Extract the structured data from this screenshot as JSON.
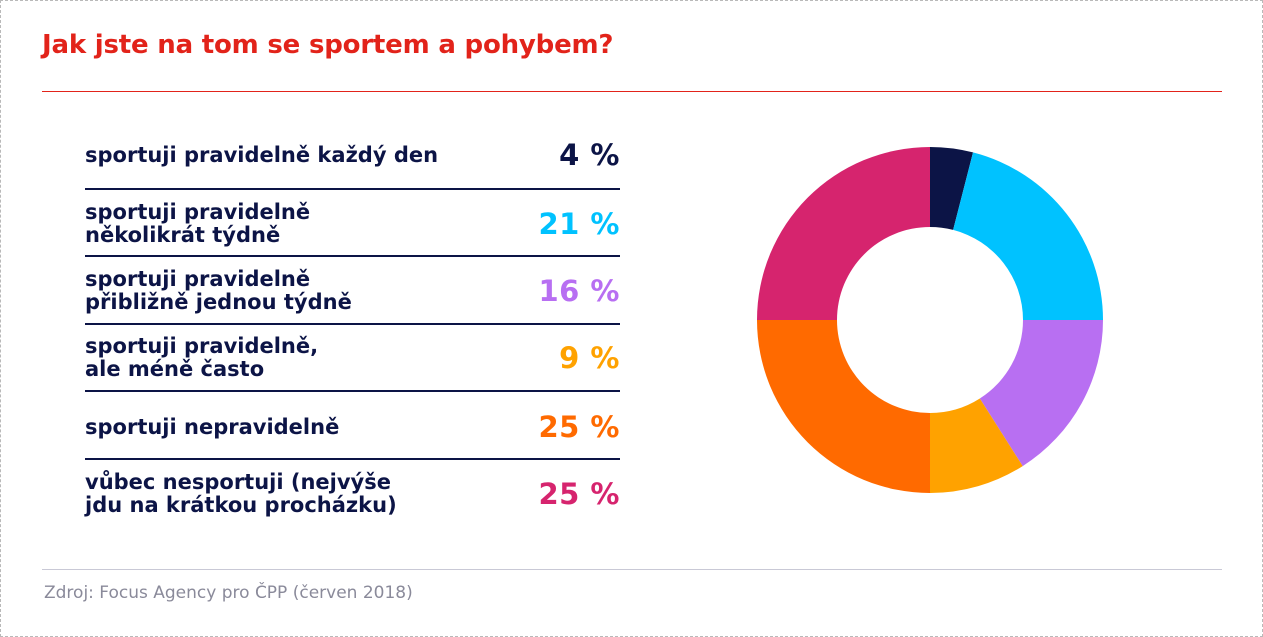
{
  "title": "Jak jste na tom se sportem a pohybem?",
  "source": "Zdroj: Focus Agency pro ČPP (červen 2018)",
  "chart_data": {
    "type": "pie",
    "title": "Jak jste na tom se sportem a pohybem?",
    "donut": true,
    "unit": "%",
    "slices": [
      {
        "label": "sportuji pravidelně každý den",
        "value": 4,
        "display": "4 %",
        "color": "#0c1446"
      },
      {
        "label": "sportuji pravidelně\nněkolikrát týdně",
        "value": 21,
        "display": "21 %",
        "color": "#00c2ff"
      },
      {
        "label": "sportuji pravidelně\npřibližně jednou týdně",
        "value": 16,
        "display": "16 %",
        "color": "#b86ff2"
      },
      {
        "label": "sportuji pravidelně,\nale méně často",
        "value": 9,
        "display": "9 %",
        "color": "#ffa200"
      },
      {
        "label": "sportuji nepravidelně",
        "value": 25,
        "display": "25 %",
        "color": "#ff6a00"
      },
      {
        "label": "vůbec nesportuji (nejvýše\njdu na krátkou procházku)",
        "value": 25,
        "display": "25 %",
        "color": "#d6246e"
      }
    ]
  }
}
